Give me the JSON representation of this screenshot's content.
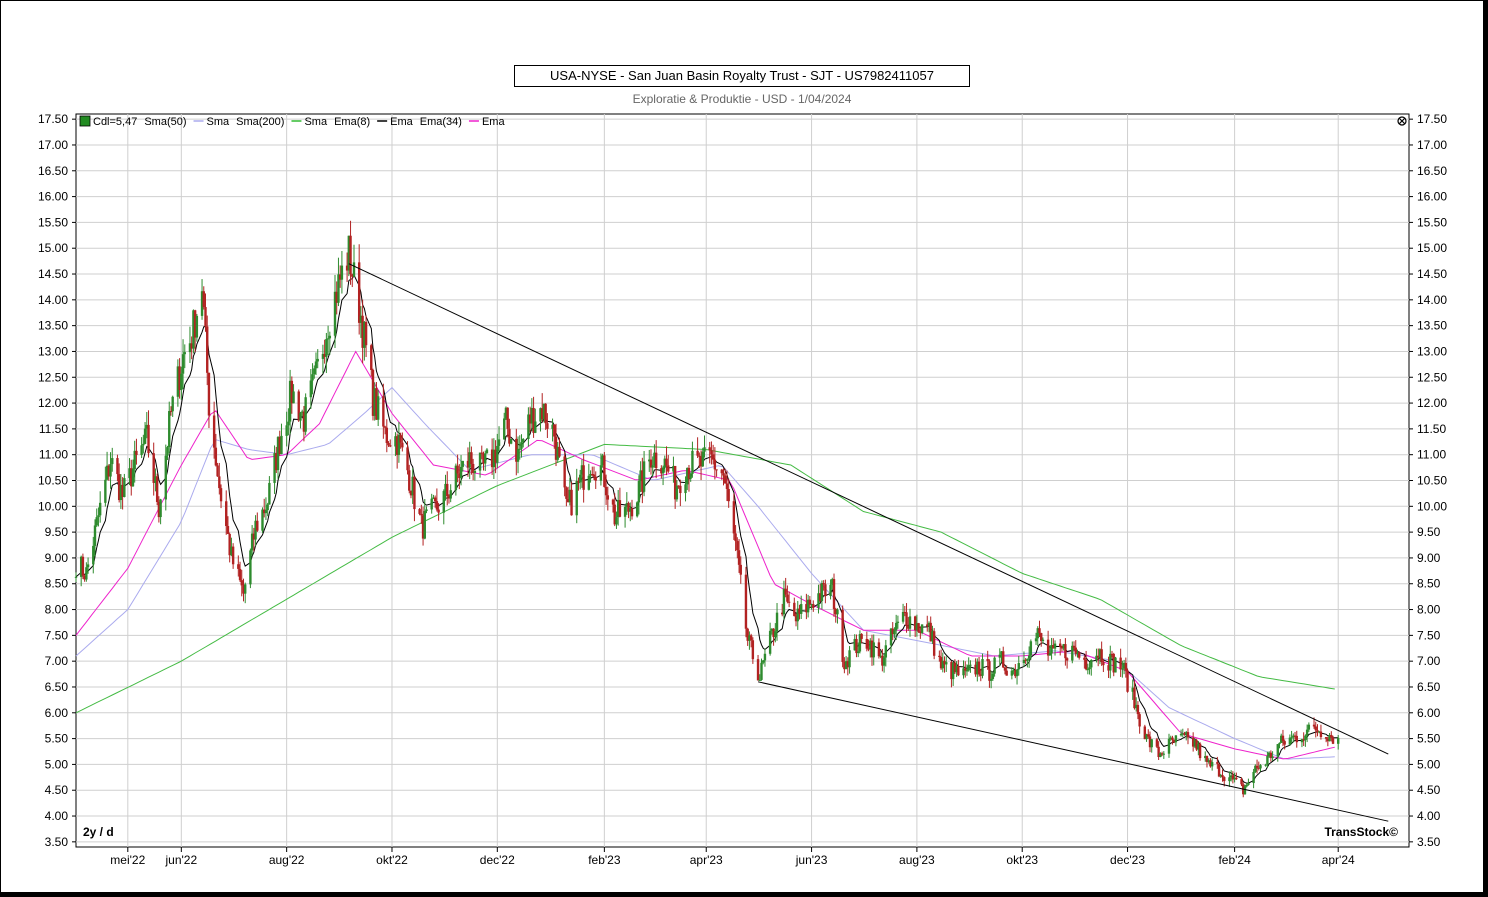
{
  "title": "USA-NYSE - San Juan Basin Royalty Trust - SJT - US7982411057",
  "subtitle": "Exploratie & Produktie - USD - 1/04/2024",
  "period_label": "2y / d",
  "brand": "TransStock©",
  "legend": [
    {
      "label": "Cdl=5,47",
      "color": "#228b22",
      "kind": "box"
    },
    {
      "label": "Sma(50)",
      "color": "#000000",
      "kind": "text"
    },
    {
      "label": "Sma",
      "color": "#aaaaee",
      "kind": "line"
    },
    {
      "label": "Sma(200)",
      "color": "#000000",
      "kind": "text"
    },
    {
      "label": "Sma",
      "color": "#33bb33",
      "kind": "line"
    },
    {
      "label": "Ema(8)",
      "color": "#000000",
      "kind": "text"
    },
    {
      "label": "Ema",
      "color": "#000000",
      "kind": "line"
    },
    {
      "label": "Ema(34)",
      "color": "#000000",
      "kind": "text"
    },
    {
      "label": "Ema",
      "color": "#ee22cc",
      "kind": "line"
    }
  ],
  "colors": {
    "up": "#2e8b2e",
    "down": "#b22222",
    "sma50": "#aaaaee",
    "sma200": "#44bb44",
    "ema8": "#000000",
    "ema34": "#ee22cc",
    "grid": "#cfcfcf"
  },
  "chart_data": {
    "type": "candlestick",
    "ylim": [
      3.4,
      17.6
    ],
    "y_ticks": [
      "17.50",
      "17.00",
      "16.50",
      "16.00",
      "15.50",
      "15.00",
      "14.50",
      "14.00",
      "13.50",
      "13.00",
      "12.50",
      "12.00",
      "11.50",
      "11.00",
      "10.50",
      "10.00",
      "9.50",
      "9.00",
      "8.50",
      "8.00",
      "7.50",
      "7.00",
      "6.50",
      "6.00",
      "5.50",
      "5.00",
      "4.50",
      "4.00",
      "3.50"
    ],
    "x_ticks": [
      {
        "label": "mei'22",
        "date": "2022-05-01"
      },
      {
        "label": "jun'22",
        "date": "2022-06-01"
      },
      {
        "label": "aug'22",
        "date": "2022-08-01"
      },
      {
        "label": "okt'22",
        "date": "2022-10-01"
      },
      {
        "label": "dec'22",
        "date": "2022-12-01"
      },
      {
        "label": "feb'23",
        "date": "2023-02-01"
      },
      {
        "label": "apr'23",
        "date": "2023-04-01"
      },
      {
        "label": "jun'23",
        "date": "2023-06-01"
      },
      {
        "label": "aug'23",
        "date": "2023-08-01"
      },
      {
        "label": "okt'23",
        "date": "2023-10-01"
      },
      {
        "label": "dec'23",
        "date": "2023-12-01"
      },
      {
        "label": "feb'24",
        "date": "2024-02-01"
      },
      {
        "label": "apr'24",
        "date": "2024-04-01"
      }
    ],
    "x_range": [
      "2022-04-01",
      "2024-05-12"
    ],
    "close_anchors": [
      [
        "2022-04-01",
        8.9
      ],
      [
        "2022-04-07",
        8.7
      ],
      [
        "2022-04-14",
        9.8
      ],
      [
        "2022-04-21",
        10.9
      ],
      [
        "2022-04-28",
        10.2
      ],
      [
        "2022-05-05",
        10.8
      ],
      [
        "2022-05-12",
        11.3
      ],
      [
        "2022-05-19",
        10.0
      ],
      [
        "2022-05-26",
        11.8
      ],
      [
        "2022-06-02",
        12.9
      ],
      [
        "2022-06-07",
        13.3
      ],
      [
        "2022-06-13",
        14.3
      ],
      [
        "2022-06-17",
        12.0
      ],
      [
        "2022-06-23",
        10.4
      ],
      [
        "2022-06-30",
        9.0
      ],
      [
        "2022-07-07",
        8.3
      ],
      [
        "2022-07-14",
        9.6
      ],
      [
        "2022-07-21",
        10.1
      ],
      [
        "2022-07-28",
        11.3
      ],
      [
        "2022-08-04",
        12.2
      ],
      [
        "2022-08-11",
        11.7
      ],
      [
        "2022-08-18",
        12.5
      ],
      [
        "2022-08-25",
        13.6
      ],
      [
        "2022-09-01",
        14.4
      ],
      [
        "2022-09-06",
        14.9
      ],
      [
        "2022-09-13",
        13.7
      ],
      [
        "2022-09-20",
        12.1
      ],
      [
        "2022-09-27",
        11.4
      ],
      [
        "2022-10-04",
        11.3
      ],
      [
        "2022-10-11",
        10.6
      ],
      [
        "2022-10-18",
        9.6
      ],
      [
        "2022-10-25",
        9.9
      ],
      [
        "2022-11-01",
        10.2
      ],
      [
        "2022-11-08",
        10.6
      ],
      [
        "2022-11-15",
        10.9
      ],
      [
        "2022-11-22",
        10.7
      ],
      [
        "2022-11-29",
        11.0
      ],
      [
        "2022-12-06",
        11.6
      ],
      [
        "2022-12-13",
        11.0
      ],
      [
        "2022-12-20",
        11.7
      ],
      [
        "2022-12-27",
        11.9
      ],
      [
        "2023-01-03",
        11.4
      ],
      [
        "2023-01-10",
        9.9
      ],
      [
        "2023-01-17",
        10.4
      ],
      [
        "2023-01-24",
        10.9
      ],
      [
        "2023-01-31",
        10.7
      ],
      [
        "2023-02-07",
        9.8
      ],
      [
        "2023-02-14",
        9.9
      ],
      [
        "2023-02-21",
        10.3
      ],
      [
        "2023-02-28",
        11.0
      ],
      [
        "2023-03-07",
        10.9
      ],
      [
        "2023-03-14",
        10.4
      ],
      [
        "2023-03-21",
        10.8
      ],
      [
        "2023-03-28",
        10.8
      ],
      [
        "2023-04-04",
        10.9
      ],
      [
        "2023-04-11",
        10.6
      ],
      [
        "2023-04-18",
        9.2
      ],
      [
        "2023-04-25",
        7.4
      ],
      [
        "2023-05-02",
        6.7
      ],
      [
        "2023-05-09",
        7.5
      ],
      [
        "2023-05-16",
        8.2
      ],
      [
        "2023-05-23",
        7.8
      ],
      [
        "2023-05-30",
        8.1
      ],
      [
        "2023-06-06",
        8.3
      ],
      [
        "2023-06-13",
        8.4
      ],
      [
        "2023-06-20",
        7.0
      ],
      [
        "2023-06-27",
        7.3
      ],
      [
        "2023-07-04",
        7.4
      ],
      [
        "2023-07-11",
        7.0
      ],
      [
        "2023-07-18",
        7.5
      ],
      [
        "2023-07-25",
        7.9
      ],
      [
        "2023-08-01",
        7.7
      ],
      [
        "2023-08-08",
        7.6
      ],
      [
        "2023-08-15",
        6.9
      ],
      [
        "2023-08-22",
        6.8
      ],
      [
        "2023-08-29",
        6.7
      ],
      [
        "2023-09-05",
        6.9
      ],
      [
        "2023-09-12",
        6.8
      ],
      [
        "2023-09-19",
        7.0
      ],
      [
        "2023-09-26",
        6.8
      ],
      [
        "2023-10-03",
        7.2
      ],
      [
        "2023-10-10",
        7.5
      ],
      [
        "2023-10-17",
        7.1
      ],
      [
        "2023-10-24",
        7.2
      ],
      [
        "2023-10-31",
        7.2
      ],
      [
        "2023-11-07",
        7.0
      ],
      [
        "2023-11-14",
        7.2
      ],
      [
        "2023-11-21",
        7.0
      ],
      [
        "2023-11-28",
        6.9
      ],
      [
        "2023-12-05",
        6.2
      ],
      [
        "2023-12-12",
        5.5
      ],
      [
        "2023-12-19",
        5.2
      ],
      [
        "2023-12-26",
        5.4
      ],
      [
        "2024-01-02",
        5.5
      ],
      [
        "2024-01-09",
        5.4
      ],
      [
        "2024-01-16",
        5.0
      ],
      [
        "2024-01-23",
        4.9
      ],
      [
        "2024-01-30",
        4.7
      ],
      [
        "2024-02-06",
        4.5
      ],
      [
        "2024-02-13",
        4.9
      ],
      [
        "2024-02-20",
        5.1
      ],
      [
        "2024-02-27",
        5.4
      ],
      [
        "2024-03-05",
        5.5
      ],
      [
        "2024-03-12",
        5.6
      ],
      [
        "2024-03-19",
        5.7
      ],
      [
        "2024-03-26",
        5.6
      ],
      [
        "2024-04-01",
        5.47
      ]
    ],
    "sma50_anchors": [
      [
        "2022-04-01",
        7.1
      ],
      [
        "2022-05-01",
        8.0
      ],
      [
        "2022-06-01",
        9.7
      ],
      [
        "2022-06-20",
        11.3
      ],
      [
        "2022-07-10",
        11.1
      ],
      [
        "2022-08-01",
        11.0
      ],
      [
        "2022-08-25",
        11.2
      ],
      [
        "2022-09-15",
        11.8
      ],
      [
        "2022-10-01",
        12.3
      ],
      [
        "2022-10-20",
        11.6
      ],
      [
        "2022-11-15",
        10.7
      ],
      [
        "2022-12-20",
        11.0
      ],
      [
        "2023-01-25",
        11.0
      ],
      [
        "2023-03-01",
        10.5
      ],
      [
        "2023-04-10",
        10.8
      ],
      [
        "2023-05-01",
        10.0
      ],
      [
        "2023-06-01",
        8.7
      ],
      [
        "2023-07-01",
        7.6
      ],
      [
        "2023-08-01",
        7.4
      ],
      [
        "2023-09-15",
        7.1
      ],
      [
        "2023-10-20",
        7.2
      ],
      [
        "2023-11-25",
        7.0
      ],
      [
        "2023-12-25",
        6.1
      ],
      [
        "2024-02-01",
        5.5
      ],
      [
        "2024-03-01",
        5.1
      ],
      [
        "2024-04-01",
        5.15
      ]
    ],
    "sma200_anchors": [
      [
        "2022-04-01",
        6.0
      ],
      [
        "2022-06-01",
        7.0
      ],
      [
        "2022-08-01",
        8.2
      ],
      [
        "2022-10-01",
        9.4
      ],
      [
        "2022-12-01",
        10.4
      ],
      [
        "2023-02-01",
        11.2
      ],
      [
        "2023-04-01",
        11.1
      ],
      [
        "2023-05-20",
        10.8
      ],
      [
        "2023-07-01",
        9.9
      ],
      [
        "2023-08-15",
        9.5
      ],
      [
        "2023-10-01",
        8.7
      ],
      [
        "2023-11-15",
        8.2
      ],
      [
        "2024-01-01",
        7.3
      ],
      [
        "2024-02-15",
        6.7
      ],
      [
        "2024-04-01",
        6.45
      ]
    ],
    "ema34_anchors": [
      [
        "2022-04-01",
        7.5
      ],
      [
        "2022-05-01",
        8.8
      ],
      [
        "2022-06-01",
        10.8
      ],
      [
        "2022-06-20",
        11.9
      ],
      [
        "2022-07-10",
        10.9
      ],
      [
        "2022-08-01",
        11.0
      ],
      [
        "2022-08-20",
        11.6
      ],
      [
        "2022-09-10",
        13.0
      ],
      [
        "2022-10-01",
        11.8
      ],
      [
        "2022-10-25",
        10.8
      ],
      [
        "2022-11-25",
        10.6
      ],
      [
        "2022-12-25",
        11.3
      ],
      [
        "2023-01-20",
        10.9
      ],
      [
        "2023-02-20",
        10.5
      ],
      [
        "2023-03-20",
        10.7
      ],
      [
        "2023-04-15",
        10.5
      ],
      [
        "2023-05-10",
        8.5
      ],
      [
        "2023-06-01",
        8.1
      ],
      [
        "2023-07-01",
        7.6
      ],
      [
        "2023-08-01",
        7.6
      ],
      [
        "2023-09-01",
        7.1
      ],
      [
        "2023-10-01",
        7.1
      ],
      [
        "2023-11-01",
        7.2
      ],
      [
        "2023-12-01",
        6.8
      ],
      [
        "2024-01-01",
        5.6
      ],
      [
        "2024-02-01",
        5.3
      ],
      [
        "2024-03-01",
        5.1
      ],
      [
        "2024-04-01",
        5.35
      ]
    ],
    "trendlines": [
      {
        "from": [
          "2022-09-06",
          14.7
        ],
        "to": [
          "2024-04-30",
          5.2
        ]
      },
      {
        "from": [
          "2023-05-01",
          6.6
        ],
        "to": [
          "2024-04-30",
          3.9
        ]
      }
    ]
  }
}
